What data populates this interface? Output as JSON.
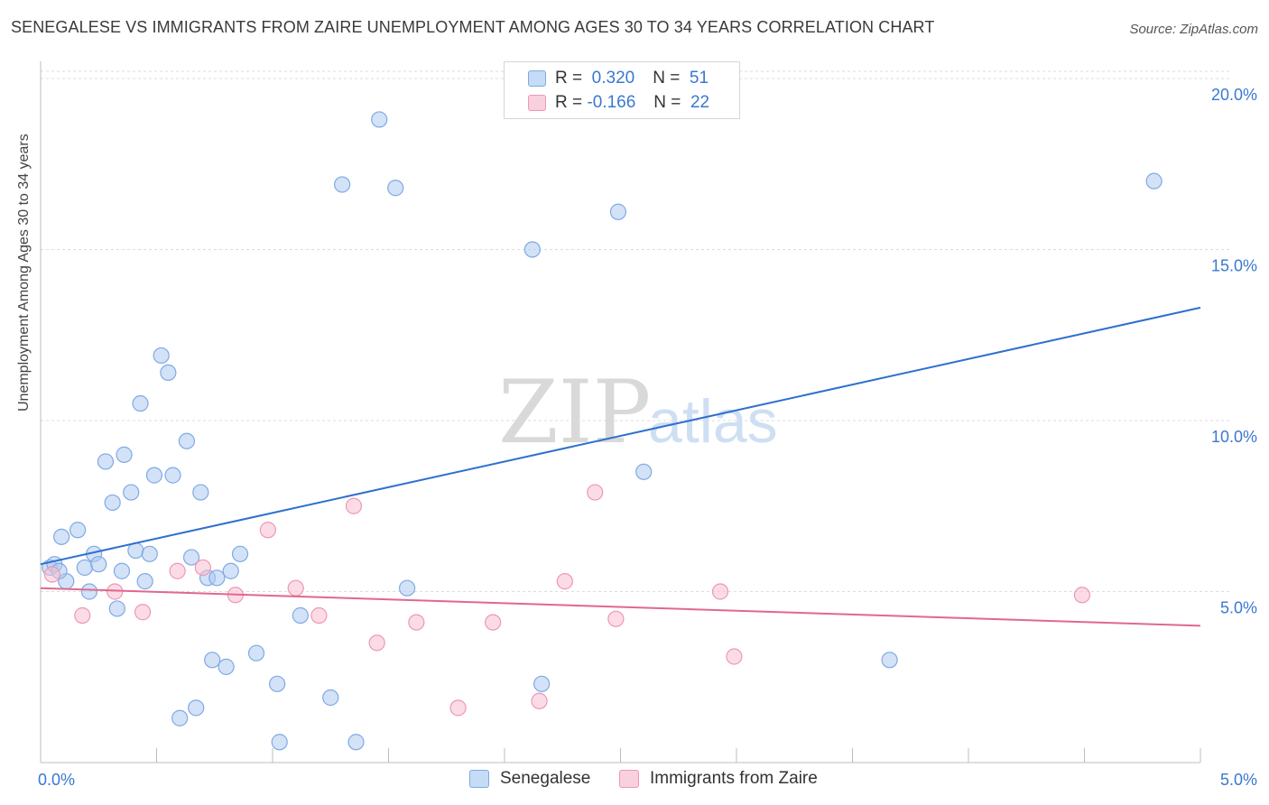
{
  "title": "SENEGALESE VS IMMIGRANTS FROM ZAIRE UNEMPLOYMENT AMONG AGES 30 TO 34 YEARS CORRELATION CHART",
  "source": "Source: ZipAtlas.com",
  "watermark": {
    "zip": "ZIP",
    "atlas": "atlas"
  },
  "legend": {
    "r_label": "R =",
    "n_label": "N =",
    "items": [
      {
        "r": "0.320",
        "n": "51"
      },
      {
        "r": "-0.166",
        "n": "22"
      }
    ]
  },
  "bottom_legend": [
    "Senegalese",
    "Immigrants from Zaire"
  ],
  "colors": {
    "blue_fill": "#aecbf0",
    "blue_stroke": "#7eaae3",
    "blue_line": "#2f6fcf",
    "pink_fill": "#f7bfd1",
    "pink_stroke": "#ee97b3",
    "pink_line": "#e0688f",
    "tick_text": "#3a78d1",
    "grid": "#dcdcdc"
  },
  "chart_data": {
    "type": "scatter",
    "title": "SENEGALESE VS IMMIGRANTS FROM ZAIRE UNEMPLOYMENT AMONG AGES 30 TO 34 YEARS CORRELATION CHART",
    "xlabel": "",
    "ylabel": "Unemployment Among Ages 30 to 34 years",
    "xlim": [
      0,
      5
    ],
    "ylim": [
      0,
      20.5
    ],
    "x_tick_labels": [
      "0.0%",
      "5.0%"
    ],
    "y_ticks": [
      5,
      10,
      15,
      20
    ],
    "y_tick_labels": [
      "5.0%",
      "10.0%",
      "15.0%",
      "20.0%"
    ],
    "grid": true,
    "legend_position": "top-center",
    "series": [
      {
        "name": "Senegalese",
        "trend": {
          "x": [
            0,
            5
          ],
          "y": [
            5.8,
            13.3
          ]
        },
        "points": [
          {
            "x": 0.04,
            "y": 5.7
          },
          {
            "x": 0.06,
            "y": 5.8
          },
          {
            "x": 0.09,
            "y": 6.6
          },
          {
            "x": 0.11,
            "y": 5.3
          },
          {
            "x": 0.16,
            "y": 6.8
          },
          {
            "x": 0.19,
            "y": 5.7
          },
          {
            "x": 0.21,
            "y": 5.0
          },
          {
            "x": 0.23,
            "y": 6.1
          },
          {
            "x": 0.25,
            "y": 5.8
          },
          {
            "x": 0.28,
            "y": 8.8
          },
          {
            "x": 0.31,
            "y": 7.6
          },
          {
            "x": 0.33,
            "y": 4.5
          },
          {
            "x": 0.36,
            "y": 9.0
          },
          {
            "x": 0.39,
            "y": 7.9
          },
          {
            "x": 0.41,
            "y": 6.2
          },
          {
            "x": 0.43,
            "y": 10.5
          },
          {
            "x": 0.45,
            "y": 5.3
          },
          {
            "x": 0.47,
            "y": 6.1
          },
          {
            "x": 0.49,
            "y": 8.4
          },
          {
            "x": 0.52,
            "y": 11.9
          },
          {
            "x": 0.55,
            "y": 11.4
          },
          {
            "x": 0.57,
            "y": 8.4
          },
          {
            "x": 0.6,
            "y": 1.3
          },
          {
            "x": 0.63,
            "y": 9.4
          },
          {
            "x": 0.65,
            "y": 6.0
          },
          {
            "x": 0.67,
            "y": 1.6
          },
          {
            "x": 0.69,
            "y": 7.9
          },
          {
            "x": 0.72,
            "y": 5.4
          },
          {
            "x": 0.74,
            "y": 3.0
          },
          {
            "x": 0.76,
            "y": 5.4
          },
          {
            "x": 0.8,
            "y": 2.8
          },
          {
            "x": 0.82,
            "y": 5.6
          },
          {
            "x": 0.86,
            "y": 6.1
          },
          {
            "x": 0.93,
            "y": 3.2
          },
          {
            "x": 1.02,
            "y": 2.3
          },
          {
            "x": 1.03,
            "y": 0.6
          },
          {
            "x": 1.12,
            "y": 4.3
          },
          {
            "x": 1.25,
            "y": 1.9
          },
          {
            "x": 1.3,
            "y": 16.9
          },
          {
            "x": 1.36,
            "y": 0.6
          },
          {
            "x": 1.46,
            "y": 18.8
          },
          {
            "x": 1.53,
            "y": 16.8
          },
          {
            "x": 1.58,
            "y": 5.1
          },
          {
            "x": 2.12,
            "y": 15.0
          },
          {
            "x": 2.16,
            "y": 2.3
          },
          {
            "x": 2.49,
            "y": 16.1
          },
          {
            "x": 2.6,
            "y": 8.5
          },
          {
            "x": 3.66,
            "y": 3.0
          },
          {
            "x": 4.8,
            "y": 17.0
          },
          {
            "x": 0.08,
            "y": 5.6
          },
          {
            "x": 0.35,
            "y": 5.6
          }
        ]
      },
      {
        "name": "Immigrants from Zaire",
        "trend": {
          "x": [
            0,
            5
          ],
          "y": [
            5.1,
            4.0
          ]
        },
        "points": [
          {
            "x": 0.05,
            "y": 5.5
          },
          {
            "x": 0.18,
            "y": 4.3
          },
          {
            "x": 0.32,
            "y": 5.0
          },
          {
            "x": 0.44,
            "y": 4.4
          },
          {
            "x": 0.59,
            "y": 5.6
          },
          {
            "x": 0.7,
            "y": 5.7
          },
          {
            "x": 0.84,
            "y": 4.9
          },
          {
            "x": 0.98,
            "y": 6.8
          },
          {
            "x": 1.1,
            "y": 5.1
          },
          {
            "x": 1.2,
            "y": 4.3
          },
          {
            "x": 1.35,
            "y": 7.5
          },
          {
            "x": 1.45,
            "y": 3.5
          },
          {
            "x": 1.62,
            "y": 4.1
          },
          {
            "x": 1.8,
            "y": 1.6
          },
          {
            "x": 1.95,
            "y": 4.1
          },
          {
            "x": 2.15,
            "y": 1.8
          },
          {
            "x": 2.26,
            "y": 5.3
          },
          {
            "x": 2.39,
            "y": 7.9
          },
          {
            "x": 2.48,
            "y": 4.2
          },
          {
            "x": 2.93,
            "y": 5.0
          },
          {
            "x": 2.99,
            "y": 3.1
          },
          {
            "x": 4.49,
            "y": 4.9
          }
        ]
      }
    ]
  }
}
